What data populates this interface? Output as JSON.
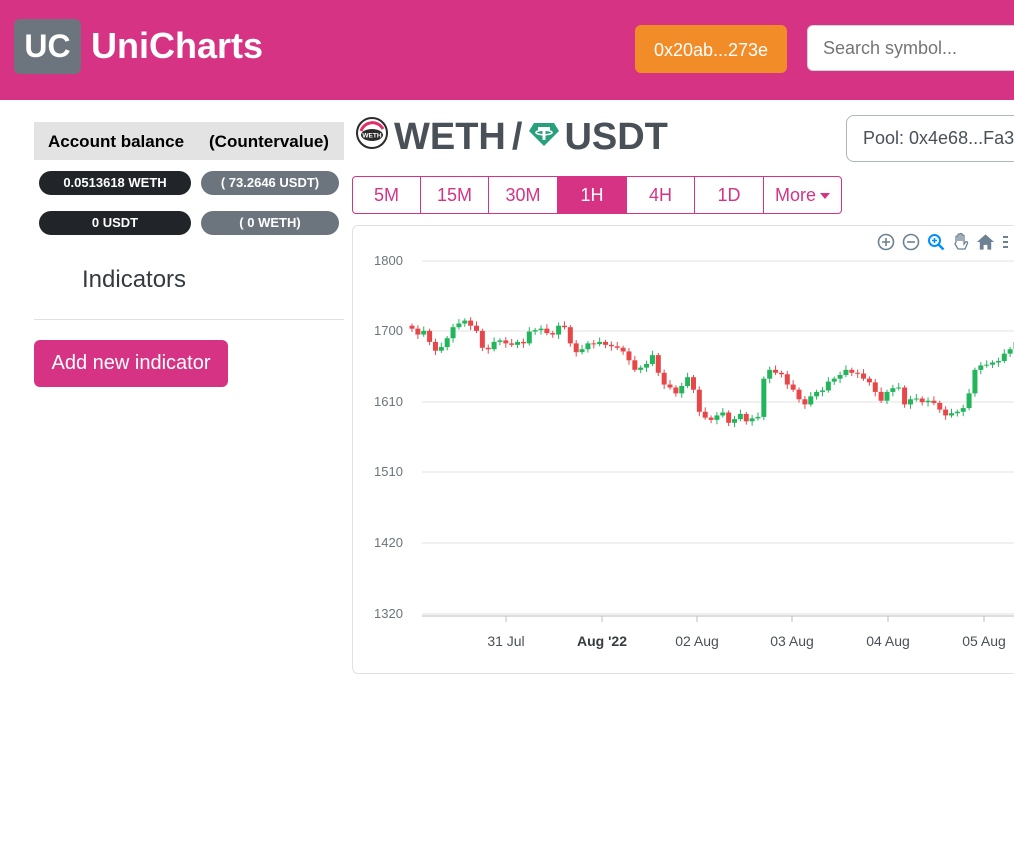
{
  "header": {
    "logo": "UC",
    "brand": "UniCharts",
    "wallet_label": "0x20ab...273e",
    "search_placeholder": "Search symbol..."
  },
  "account": {
    "balance_header": "Account balance",
    "countervalue_header": "(Countervalue)",
    "rows": [
      {
        "balance": "0.0513618 WETH",
        "countervalue": "( 73.2646 USDT)"
      },
      {
        "balance": "0 USDT",
        "countervalue": "( 0 WETH)"
      }
    ]
  },
  "indicators": {
    "title": "Indicators",
    "add_button": "Add new indicator"
  },
  "pair": {
    "base": "WETH",
    "separator": "/",
    "quote": "USDT",
    "base_icon": "weth-coin-icon",
    "quote_icon": "tether-coin-icon"
  },
  "pool": {
    "label": "Pool: 0x4e68...Fa3"
  },
  "timeframes": {
    "items": [
      "5M",
      "15M",
      "30M",
      "1H",
      "4H",
      "1D"
    ],
    "active": "1H",
    "more_label": "More"
  },
  "toolbar_icons": [
    "zoom-in-icon",
    "zoom-out-icon",
    "zoom-selection-icon",
    "pan-hand-icon",
    "home-reset-icon",
    "menu-icon"
  ],
  "colors": {
    "brand": "#d63384",
    "wallet": "#f28c28",
    "up": "#22b55b",
    "down": "#e8474a"
  },
  "chart_data": {
    "type": "candlestick",
    "title": "",
    "xlabel": "",
    "ylabel": "",
    "y_ticks": [
      "1800",
      "1700",
      "1610",
      "1510",
      "1420",
      "1320"
    ],
    "ylim": [
      1320,
      1800
    ],
    "x_ticks": [
      "31 Jul",
      "Aug '22",
      "02 Aug",
      "03 Aug",
      "04 Aug",
      "05 Aug"
    ],
    "x_ticks_bold": [
      "Aug '22"
    ],
    "grid": true,
    "close_series": [
      1708,
      1700,
      1705,
      1690,
      1678,
      1683,
      1695,
      1710,
      1715,
      1719,
      1712,
      1705,
      1682,
      1680,
      1690,
      1692,
      1688,
      1686,
      1690,
      1688,
      1704,
      1706,
      1708,
      1702,
      1700,
      1712,
      1710,
      1688,
      1676,
      1680,
      1688,
      1687,
      1690,
      1686,
      1684,
      1682,
      1677,
      1665,
      1652,
      1655,
      1660,
      1672,
      1648,
      1632,
      1628,
      1620,
      1630,
      1642,
      1625,
      1595,
      1587,
      1584,
      1590,
      1594,
      1580,
      1585,
      1592,
      1582,
      1586,
      1588,
      1640,
      1652,
      1648,
      1646,
      1632,
      1625,
      1612,
      1605,
      1616,
      1622,
      1624,
      1636,
      1640,
      1645,
      1652,
      1648,
      1647,
      1640,
      1635,
      1622,
      1610,
      1622,
      1627,
      1628,
      1605,
      1612,
      1613,
      1608,
      1610,
      1607,
      1598,
      1590,
      1593,
      1595,
      1600,
      1620,
      1652,
      1658,
      1659,
      1662,
      1664,
      1674,
      1680,
      1690
    ]
  }
}
